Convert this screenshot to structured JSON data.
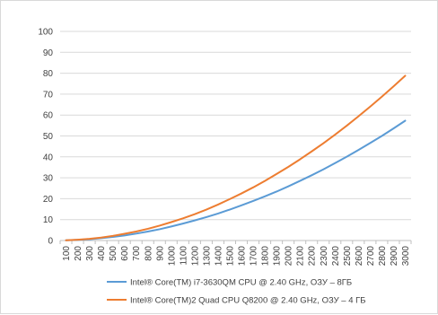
{
  "chart_data": {
    "type": "line",
    "title": "",
    "xlabel": "",
    "ylabel": "",
    "ylim": [
      0,
      100
    ],
    "y_ticks": [
      0,
      10,
      20,
      30,
      40,
      50,
      60,
      70,
      80,
      90,
      100
    ],
    "x": [
      100,
      200,
      300,
      400,
      500,
      600,
      700,
      800,
      900,
      1000,
      1100,
      1200,
      1300,
      1400,
      1500,
      1600,
      1700,
      1800,
      1900,
      2000,
      2100,
      2200,
      2300,
      2400,
      2500,
      2600,
      2700,
      2800,
      2900,
      3000
    ],
    "grid": {
      "horizontal": true,
      "vertical": false
    },
    "legend_position": "bottom",
    "series": [
      {
        "name": "Intel® Core(TM) i7-3630QM CPU @ 2.40 GHz, ОЗУ – 8ГБ",
        "color": "#5b9bd5",
        "values": [
          0.1,
          0.3,
          0.6,
          1.1,
          1.7,
          2.4,
          3.3,
          4.3,
          5.4,
          6.7,
          8.1,
          9.6,
          11.2,
          12.9,
          14.8,
          16.8,
          18.9,
          21.1,
          23.4,
          25.9,
          28.5,
          31.2,
          34.0,
          37.0,
          40.1,
          43.3,
          46.6,
          50.0,
          53.6,
          57.3
        ]
      },
      {
        "name": "Intel® Core(TM)2 Quad CPU Q8200 @ 2.40 GHz, ОЗУ – 4 ГБ",
        "color": "#ed7d31",
        "values": [
          0.1,
          0.4,
          0.8,
          1.4,
          2.2,
          3.2,
          4.3,
          5.6,
          7.1,
          8.8,
          10.6,
          12.6,
          14.8,
          17.2,
          19.8,
          22.5,
          25.4,
          28.5,
          31.8,
          35.2,
          38.8,
          42.6,
          46.5,
          50.6,
          54.9,
          59.4,
          64.0,
          68.8,
          73.7,
          78.8
        ]
      }
    ]
  }
}
